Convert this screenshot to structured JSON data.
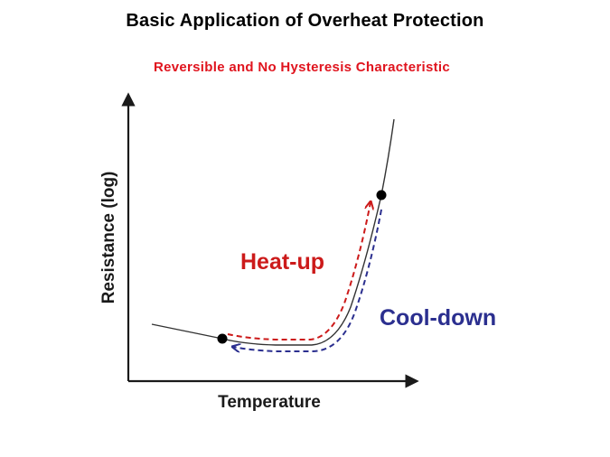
{
  "header": {
    "title": "Basic Application of Overheat Protection",
    "subtitle": "Reversible and No Hysteresis Characteristic"
  },
  "diagram": {
    "xlabel": "Temperature",
    "ylabel": "Resistance (log)",
    "labels": {
      "heat_up": "Heat-up",
      "cool_down": "Cool-down"
    },
    "colors": {
      "title": "#000000",
      "subtitle": "#e0141e",
      "curve": "#333333",
      "heat_up": "#cc1a1a",
      "cool_down": "#2b2f8f",
      "axes": "#1a1a1a"
    }
  }
}
